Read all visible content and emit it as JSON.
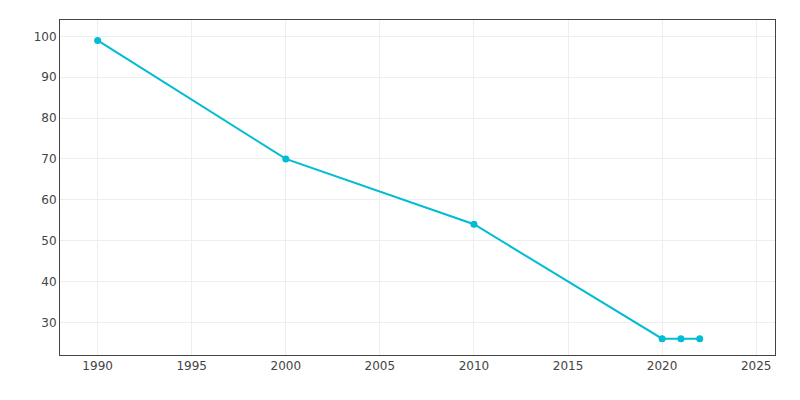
{
  "chart_data": {
    "type": "line",
    "x": [
      1990,
      2000,
      2010,
      2020,
      2021,
      2022
    ],
    "values": [
      99,
      70,
      54,
      26,
      26,
      26
    ],
    "color": "#00bcd4",
    "marker": "circle",
    "xlim": [
      1988,
      2026
    ],
    "xticks": [
      1990,
      1995,
      2000,
      2005,
      2010,
      2015,
      2020,
      2025
    ],
    "ylim": [
      22,
      104
    ],
    "yticks": [
      30,
      40,
      50,
      60,
      70,
      80,
      90,
      100
    ],
    "grid": true
  }
}
